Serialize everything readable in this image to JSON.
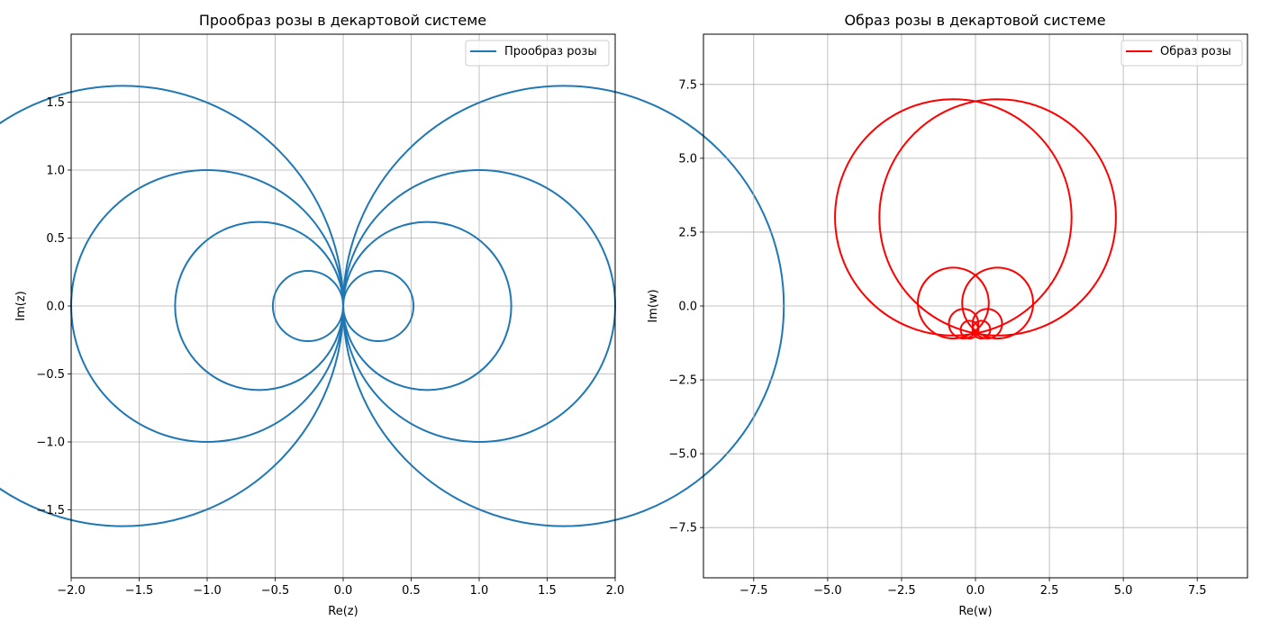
{
  "chart_data": [
    {
      "type": "line",
      "title": "Прообраз розы в декартовой системе",
      "xlabel": "Re(z)",
      "ylabel": "Im(z)",
      "xlim": [
        -2.0,
        2.0
      ],
      "ylim": [
        -2.0,
        2.0
      ],
      "xticks": [
        "−2.0",
        "−1.5",
        "−1.0",
        "−0.5",
        "0.0",
        "0.5",
        "1.0",
        "1.5",
        "2.0"
      ],
      "xtick_values": [
        -2.0,
        -1.5,
        -1.0,
        -0.5,
        0.0,
        0.5,
        1.0,
        1.5,
        2.0
      ],
      "yticks": [
        "−1.5",
        "−1.0",
        "−0.5",
        "0.0",
        "0.5",
        "1.0",
        "1.5"
      ],
      "ytick_values": [
        -1.5,
        -1.0,
        -0.5,
        0.0,
        0.5,
        1.0,
        1.5
      ],
      "grid": true,
      "legend_position": "upper right",
      "series": [
        {
          "name": "Прообраз розы",
          "color": "#1f77b4",
          "circles": [
            {
              "cx": -0.2585,
              "cy": 0.0,
              "r": 0.2585
            },
            {
              "cx": 0.2585,
              "cy": 0.0,
              "r": 0.2585
            },
            {
              "cx": -0.618,
              "cy": 0.0,
              "r": 0.618
            },
            {
              "cx": 0.618,
              "cy": 0.0,
              "r": 0.618
            },
            {
              "cx": -1.0,
              "cy": 0.0,
              "r": 1.0
            },
            {
              "cx": 1.0,
              "cy": 0.0,
              "r": 1.0
            },
            {
              "cx": -1.62,
              "cy": 0.0,
              "r": 1.62
            },
            {
              "cx": 1.62,
              "cy": 0.0,
              "r": 1.62
            }
          ]
        }
      ]
    },
    {
      "type": "line",
      "title": "Образ розы в декартовой системе",
      "xlabel": "Re(w)",
      "ylabel": "Im(w)",
      "xlim": [
        -9.2,
        9.2
      ],
      "ylim": [
        -9.2,
        9.2
      ],
      "xticks": [
        "−7.5",
        "−5.0",
        "−2.5",
        "0.0",
        "2.5",
        "5.0",
        "7.5"
      ],
      "xtick_values": [
        -7.5,
        -5.0,
        -2.5,
        0.0,
        2.5,
        5.0,
        7.5
      ],
      "yticks": [
        "7.5",
        "5.0",
        "2.5",
        "0.0",
        "−2.5",
        "−5.0",
        "−7.5"
      ],
      "ytick_values": [
        7.5,
        5.0,
        2.5,
        0.0,
        -2.5,
        -5.0,
        -7.5
      ],
      "grid": true,
      "legend_position": "upper right",
      "series": [
        {
          "name": "Образ розы",
          "color": "#ff0000",
          "circles": [
            {
              "cx": -0.75,
              "cy": 3.0,
              "r": 4.0
            },
            {
              "cx": 0.75,
              "cy": 3.0,
              "r": 4.0
            },
            {
              "cx": -0.75,
              "cy": 0.1,
              "r": 1.2
            },
            {
              "cx": 0.75,
              "cy": 0.1,
              "r": 1.2
            },
            {
              "cx": -0.4,
              "cy": -0.6,
              "r": 0.5
            },
            {
              "cx": 0.4,
              "cy": -0.6,
              "r": 0.5
            },
            {
              "cx": -0.2,
              "cy": -0.8,
              "r": 0.3
            },
            {
              "cx": 0.2,
              "cy": -0.8,
              "r": 0.3
            }
          ]
        }
      ]
    }
  ]
}
